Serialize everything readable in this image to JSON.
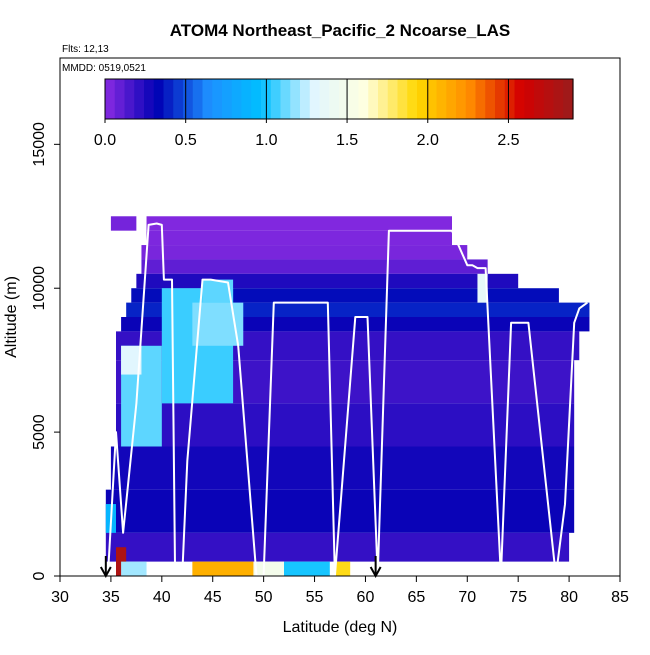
{
  "chart_data": {
    "type": "heatmap",
    "title": "ATOM4 Northeast_Pacific_2 Ncoarse_LAS",
    "annotations": {
      "flights": "Flts: 12,13",
      "dates": "MMDD: 0519,0521"
    },
    "xlabel": "Latitude (deg N)",
    "ylabel": "Altitude (m)",
    "xlim": [
      30,
      85
    ],
    "ylim": [
      0,
      18000
    ],
    "x_ticks": [
      30,
      35,
      40,
      45,
      50,
      55,
      60,
      65,
      70,
      75,
      80,
      85
    ],
    "y_ticks": [
      0,
      5000,
      10000,
      15000
    ],
    "grid": false,
    "colorbar": {
      "range": [
        0,
        2.9
      ],
      "tick_values": [
        0.0,
        0.5,
        1.0,
        1.5,
        2.0,
        2.5
      ],
      "tick_labels": [
        "0.0",
        "0.5",
        "1.0",
        "1.5",
        "2.0",
        "2.5"
      ],
      "position": "top inside plot",
      "colors": [
        "#8a2be2",
        "#0000b4",
        "#1e90ff",
        "#00bfff",
        "#e0f6ff",
        "#ffffe0",
        "#ffd700",
        "#ff8c00",
        "#d40000",
        "#9b1c1c"
      ]
    },
    "heatmap_cells": [
      {
        "x": [
          35.0,
          37.5
        ],
        "y": [
          12000,
          12500
        ],
        "v": 0.05
      },
      {
        "x": [
          38.5,
          68.5
        ],
        "y": [
          12000,
          12500
        ],
        "v": 0.02
      },
      {
        "x": [
          38.5,
          68.5
        ],
        "y": [
          11500,
          12000
        ],
        "v": 0.03
      },
      {
        "x": [
          38.0,
          70.0
        ],
        "y": [
          11000,
          11500
        ],
        "v": 0.04
      },
      {
        "x": [
          38.0,
          72.0
        ],
        "y": [
          10500,
          11000
        ],
        "v": 0.1
      },
      {
        "x": [
          37.5,
          75.0
        ],
        "y": [
          10000,
          10500
        ],
        "v": 0.25
      },
      {
        "x": [
          37.0,
          79.0
        ],
        "y": [
          9500,
          10000
        ],
        "v": 0.35
      },
      {
        "x": [
          36.5,
          82.0
        ],
        "y": [
          9000,
          9500
        ],
        "v": 0.4
      },
      {
        "x": [
          36.0,
          82.0
        ],
        "y": [
          8500,
          9000
        ],
        "v": 0.3
      },
      {
        "x": [
          35.5,
          81.0
        ],
        "y": [
          7500,
          8500
        ],
        "v": 0.2
      },
      {
        "x": [
          35.5,
          80.5
        ],
        "y": [
          6000,
          7500
        ],
        "v": 0.18
      },
      {
        "x": [
          35.5,
          80.5
        ],
        "y": [
          4500,
          6000
        ],
        "v": 0.22
      },
      {
        "x": [
          35.0,
          80.5
        ],
        "y": [
          3000,
          4500
        ],
        "v": 0.28
      },
      {
        "x": [
          34.5,
          80.5
        ],
        "y": [
          1500,
          3000
        ],
        "v": 0.3
      },
      {
        "x": [
          34.5,
          80.0
        ],
        "y": [
          500,
          1500
        ],
        "v": 0.2
      },
      {
        "x": [
          40.0,
          47.0
        ],
        "y": [
          6000,
          10000
        ],
        "v": 1.05
      },
      {
        "x": [
          43.0,
          48.0
        ],
        "y": [
          8000,
          9500
        ],
        "v": 1.15
      },
      {
        "x": [
          36.0,
          40.0
        ],
        "y": [
          4500,
          8000
        ],
        "v": 1.1
      },
      {
        "x": [
          36.0,
          38.0
        ],
        "y": [
          7000,
          8000
        ],
        "v": 1.3
      },
      {
        "x": [
          44.0,
          47.0
        ],
        "y": [
          9500,
          10300
        ],
        "v": 1.1
      },
      {
        "x": [
          71.0,
          72.0
        ],
        "y": [
          9500,
          10500
        ],
        "v": 1.35
      },
      {
        "x": [
          34.5,
          35.5
        ],
        "y": [
          1500,
          2500
        ],
        "v": 0.9
      },
      {
        "x": [
          35.5,
          36.5
        ],
        "y": [
          0,
          1000
        ],
        "v": 2.8
      },
      {
        "x": [
          36.0,
          38.5
        ],
        "y": [
          0,
          500
        ],
        "v": 1.2
      },
      {
        "x": [
          43.0,
          49.0
        ],
        "y": [
          0,
          500
        ],
        "v": 2.1
      },
      {
        "x": [
          49.0,
          52.0
        ],
        "y": [
          0,
          500
        ],
        "v": 1.5
      },
      {
        "x": [
          52.0,
          56.5
        ],
        "y": [
          0,
          500
        ],
        "v": 1.0
      },
      {
        "x": [
          57.0,
          58.5
        ],
        "y": [
          0,
          500
        ],
        "v": 1.9
      }
    ],
    "flight_track_lat": [
      34.7,
      35.5,
      36.2,
      37.5,
      38.7,
      39.5,
      40.0,
      40.2,
      41.0,
      41.3,
      42.0,
      42.5,
      44.0,
      44.8,
      46.5,
      47.5,
      49.3,
      50.0,
      51.0,
      53.5,
      56.3,
      57.0,
      59.0,
      60.2,
      61.2,
      62.3,
      62.8,
      68.5,
      70.0,
      70.5,
      71.0,
      71.8,
      73.3,
      74.3,
      75.8,
      76.0,
      78.7,
      79.6,
      80.5,
      81.0,
      81.8
    ],
    "flight_track_alt": [
      0,
      5000,
      1500,
      6000,
      12200,
      12250,
      12200,
      10300,
      10300,
      0,
      0,
      4000,
      10300,
      10300,
      10200,
      8000,
      0,
      0,
      9500,
      9500,
      9500,
      0,
      9000,
      9000,
      0,
      12000,
      12000,
      12000,
      10800,
      10800,
      10700,
      10700,
      0,
      8800,
      8800,
      8800,
      0,
      2500,
      8800,
      9300,
      9500
    ],
    "arrow_markers_lat": [
      34.5,
      61.0
    ]
  }
}
